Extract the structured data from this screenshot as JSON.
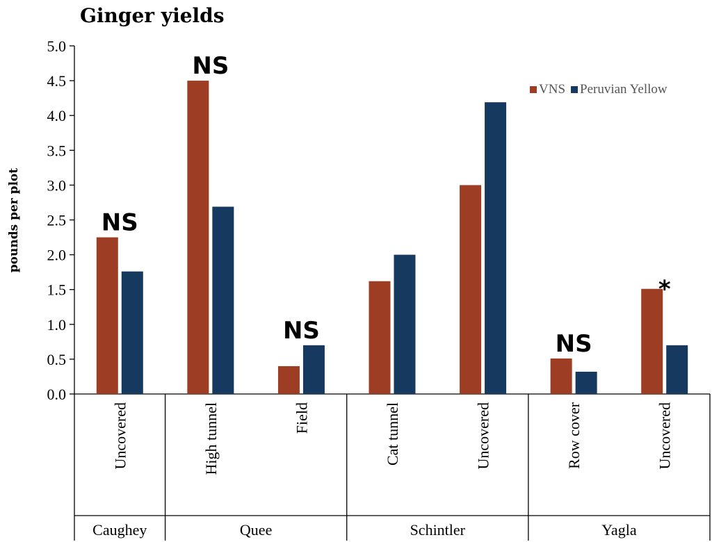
{
  "chart_data": {
    "type": "bar",
    "title": "Ginger yields",
    "ylabel": "pounds per plot",
    "xlabel": "",
    "ylim": [
      0,
      5.0
    ],
    "yticks": [
      "0.0",
      "0.5",
      "1.0",
      "1.5",
      "2.0",
      "2.5",
      "3.0",
      "3.5",
      "4.0",
      "4.5",
      "5.0"
    ],
    "legend_position": "top-right",
    "categories": [
      "Uncovered",
      "High tunnel",
      "Field",
      "Cat tunnel",
      "Uncovered",
      "Row cover",
      "Uncovered"
    ],
    "groups": [
      {
        "name": "Caughey",
        "categories": [
          "Uncovered"
        ]
      },
      {
        "name": "Quee",
        "categories": [
          "High tunnel",
          "Field"
        ]
      },
      {
        "name": "Schintler",
        "categories": [
          "Cat tunnel",
          "Uncovered"
        ]
      },
      {
        "name": "Yagla",
        "categories": [
          "Row cover",
          "Uncovered"
        ]
      }
    ],
    "series": [
      {
        "name": "VNS",
        "color": "#9C3D24",
        "values": [
          2.25,
          4.5,
          0.4,
          1.62,
          3.0,
          0.51,
          1.51
        ]
      },
      {
        "name": "Peruvian Yellow",
        "color": "#163A5F",
        "values": [
          1.76,
          2.69,
          0.7,
          2.0,
          4.19,
          0.32,
          0.7
        ]
      }
    ],
    "annotations": [
      "NS",
      "NS",
      "NS",
      "",
      "",
      "NS",
      "*"
    ]
  }
}
